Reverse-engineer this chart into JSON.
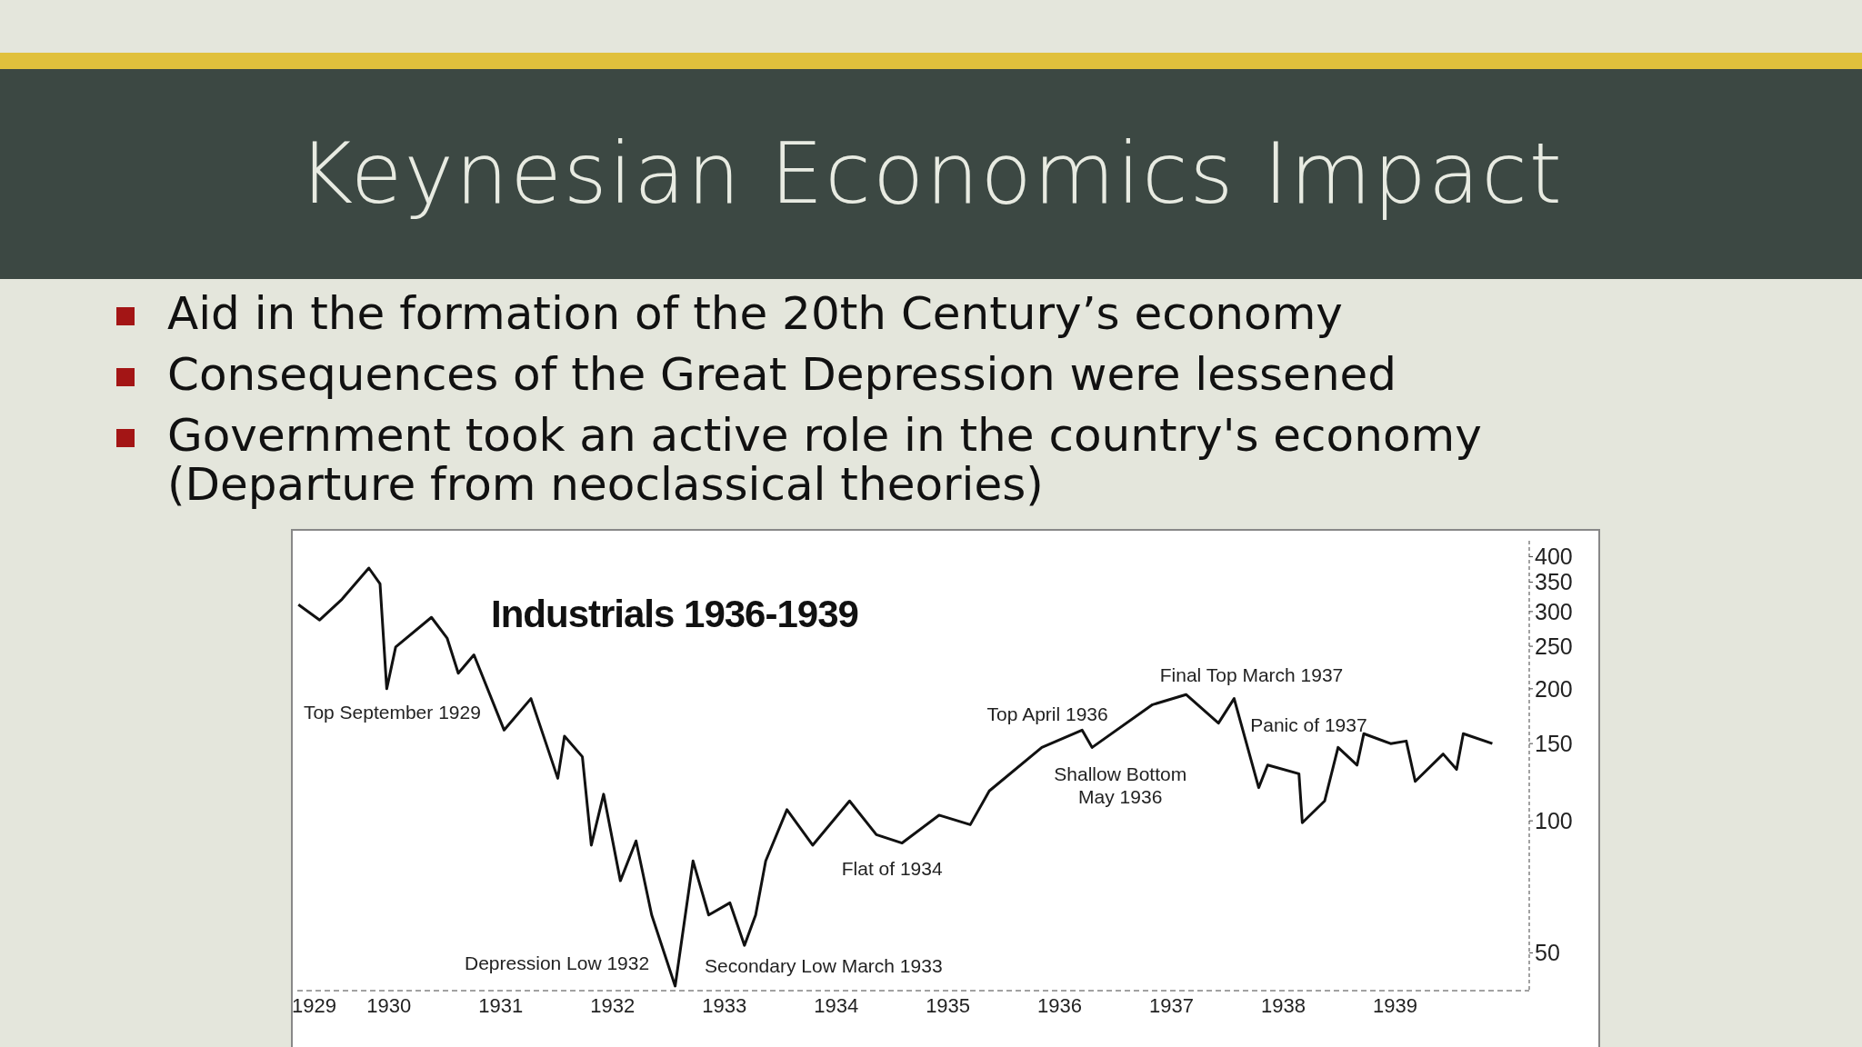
{
  "chart_data": {
    "type": "line",
    "title": "Keynesian Economics Impact",
    "subtitle": "Industrials 1936-1939",
    "annotations": [
      "Aid in the formation of the 20th Century’s economy",
      "Consequences of the Great Depression were lessened",
      "Government took an active role in the country's economy (Departure from neoclassical theories)",
      {
        "text": "Top September 1929",
        "x": 1929.98,
        "y": 200
      },
      {
        "text": "Depression Low 1932",
        "x": 1932.56,
        "y": 42
      },
      {
        "text": "Secondary Low March 1933",
        "x": 1933.18,
        "y": 52
      },
      {
        "text": "Flat of 1934",
        "x": 1934.59,
        "y": 89
      },
      {
        "text": "Top April 1936",
        "x": 1936.2,
        "y": 161
      },
      {
        "text": "Shallow Bottom\nMay 1936",
        "x": 1936.29,
        "y": 147
      },
      {
        "text": "Final Top March 1937",
        "x": 1937.13,
        "y": 194
      },
      {
        "text": "Panic of 1937",
        "x": 1937.78,
        "y": 119
      }
    ],
    "x": [
      1929.19,
      1929.38,
      1929.58,
      1929.82,
      1929.92,
      1929.98,
      1930.06,
      1930.38,
      1930.52,
      1930.62,
      1930.76,
      1931.03,
      1931.27,
      1931.51,
      1931.57,
      1931.73,
      1931.81,
      1931.92,
      1932.07,
      1932.21,
      1932.35,
      1932.56,
      1932.72,
      1932.86,
      1933.05,
      1933.18,
      1933.28,
      1933.37,
      1933.56,
      1933.79,
      1934.12,
      1934.36,
      1934.59,
      1934.92,
      1935.2,
      1935.37,
      1935.84,
      1936.2,
      1936.29,
      1936.83,
      1937.13,
      1937.42,
      1937.56,
      1937.78,
      1937.86,
      1938.14,
      1938.17,
      1938.37,
      1938.49,
      1938.66,
      1938.72,
      1938.96,
      1939.1,
      1939.18,
      1939.43,
      1939.55,
      1939.61,
      1939.87
    ],
    "series": [
      {
        "color": "#111111",
        "values": [
          311,
          287,
          320,
          377,
          347,
          200,
          249,
          291,
          261,
          217,
          239,
          161,
          190,
          125,
          156,
          140,
          88,
          115,
          73,
          90,
          61,
          42,
          81,
          61,
          65,
          52,
          61,
          81,
          106,
          88,
          111,
          93,
          89,
          103,
          98,
          117,
          147,
          161,
          147,
          184,
          194,
          167,
          190,
          119,
          134,
          128,
          99,
          111,
          147,
          134,
          158,
          150,
          152,
          123,
          142,
          131,
          158,
          150
        ]
      }
    ],
    "xlim": [
      1929.18,
      1940.2
    ],
    "xticks": [
      {
        "value": 1929.33,
        "label": "1929"
      },
      1930,
      1931,
      1932,
      1933,
      1934,
      1935,
      1936,
      1937,
      1938,
      1939
    ],
    "ylim": [
      41,
      435
    ],
    "yticks": [
      50,
      100,
      150,
      200,
      250,
      300,
      350,
      400
    ],
    "log": true,
    "marker": "none",
    "line_style": "solid",
    "grid": false,
    "legend": false
  }
}
